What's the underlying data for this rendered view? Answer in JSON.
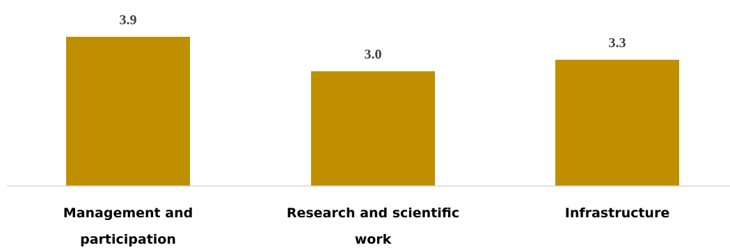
{
  "chart_data": {
    "type": "bar",
    "title": "",
    "xlabel": "",
    "ylabel": "",
    "categories": [
      [
        "Management and",
        "participation"
      ],
      [
        "Research and scientific",
        "work"
      ],
      [
        "Infrastructure"
      ]
    ],
    "values": [
      3.9,
      3.0,
      3.3
    ],
    "value_labels": [
      "3.9",
      "3.0",
      "3.3"
    ],
    "ylim": [
      0,
      4.0
    ],
    "grid": false,
    "legend": "none",
    "colors": {
      "bar": "#BF8F00",
      "axis": "#D9D9D9",
      "value_text": "#404040",
      "category_text": "#000000"
    }
  }
}
